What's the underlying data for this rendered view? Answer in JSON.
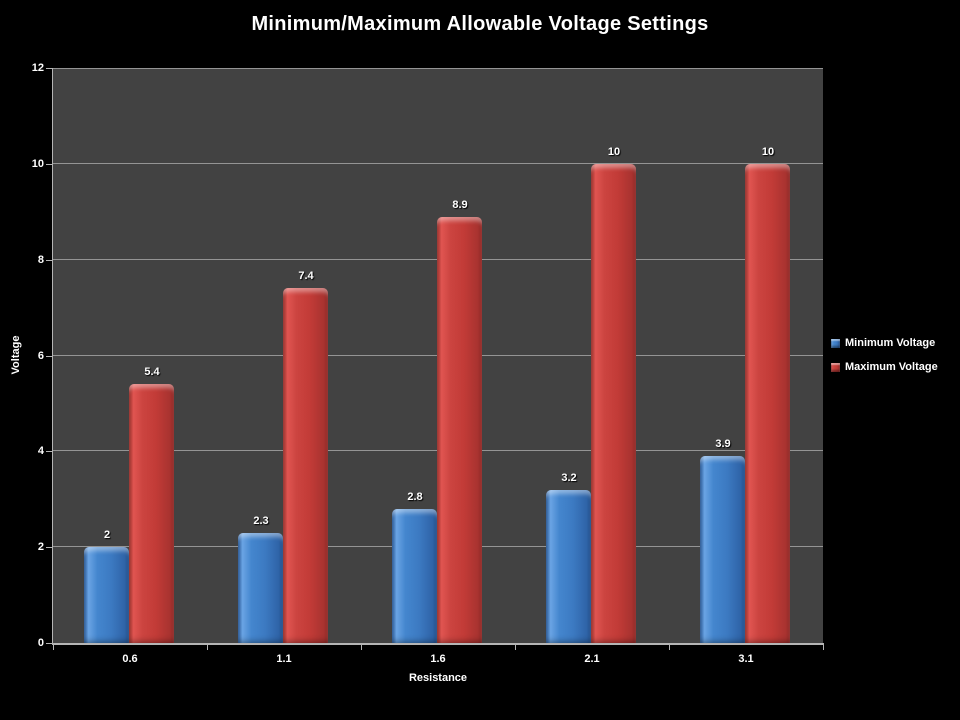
{
  "slide": {
    "background_color": "#000000",
    "text_color": "#FFFFFF"
  },
  "chart_data": {
    "type": "bar",
    "title": "Minimum/Maximum Allowable Voltage Settings",
    "xlabel": "Resistance",
    "ylabel": "Voltage",
    "categories": [
      "0.6",
      "1.1",
      "1.6",
      "2.1",
      "3.1"
    ],
    "series": [
      {
        "name": "Minimum Voltage",
        "color": "#3E7EC8",
        "values": [
          2,
          2.3,
          2.8,
          3.2,
          3.9
        ],
        "labels": [
          "2",
          "2.3",
          "2.8",
          "3.2",
          "3.9"
        ]
      },
      {
        "name": "Maximum Voltage",
        "color": "#C63C37",
        "values": [
          5.4,
          7.4,
          8.9,
          10,
          10
        ],
        "labels": [
          "5.4",
          "7.4",
          "8.9",
          "10",
          "10"
        ]
      }
    ],
    "ylim": [
      0,
      12
    ],
    "yticks": [
      0,
      2,
      4,
      6,
      8,
      10,
      12
    ],
    "grid": true,
    "data_labels": true,
    "legend_position": "right",
    "plot_background": "#424242",
    "gridline_color": "#949494",
    "axis_color": "#B5B5B5"
  }
}
